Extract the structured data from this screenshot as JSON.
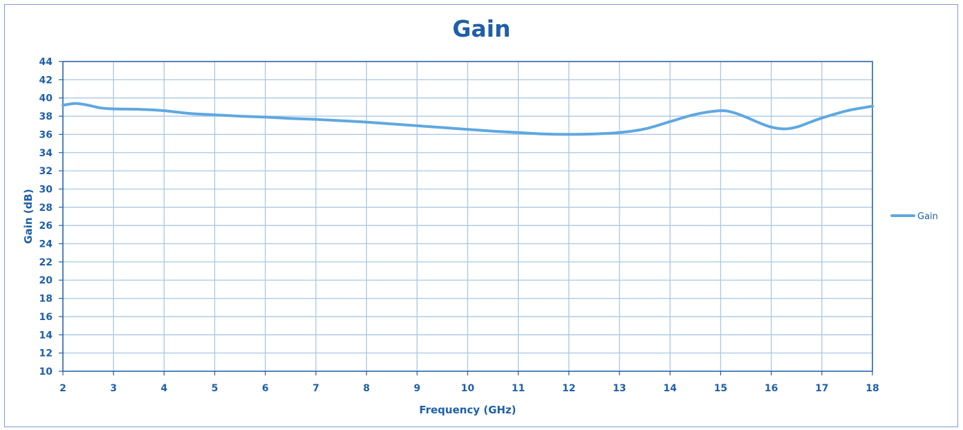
{
  "chart_data": {
    "type": "line",
    "title": "Gain",
    "xlabel": "Frequency (GHz)",
    "ylabel": "Gain (dB)",
    "xlim": [
      2,
      18
    ],
    "ylim": [
      10,
      44
    ],
    "x_ticks": [
      2,
      3,
      4,
      5,
      6,
      7,
      8,
      9,
      10,
      11,
      12,
      13,
      14,
      15,
      16,
      17,
      18
    ],
    "y_ticks": [
      10,
      12,
      14,
      16,
      18,
      20,
      22,
      24,
      26,
      28,
      30,
      32,
      34,
      36,
      38,
      40,
      42,
      44
    ],
    "grid": true,
    "legend_position": "right",
    "series_color": "#5fa8e0",
    "series": [
      {
        "name": "Gain",
        "x": [
          2,
          2.25,
          2.5,
          2.75,
          3,
          3.5,
          4,
          4.5,
          5,
          5.5,
          6,
          6.5,
          7,
          7.5,
          8,
          8.5,
          9,
          9.5,
          10,
          10.5,
          11,
          11.5,
          12,
          12.5,
          13,
          13.5,
          14,
          14.5,
          15,
          15.25,
          15.5,
          15.75,
          16,
          16.25,
          16.5,
          16.75,
          17,
          17.5,
          18
        ],
        "y": [
          39.2,
          39.4,
          39.2,
          38.9,
          38.8,
          38.75,
          38.6,
          38.3,
          38.15,
          38.0,
          37.9,
          37.75,
          37.65,
          37.5,
          37.35,
          37.15,
          36.95,
          36.75,
          36.55,
          36.35,
          36.2,
          36.05,
          36.0,
          36.05,
          36.2,
          36.6,
          37.4,
          38.2,
          38.6,
          38.4,
          37.9,
          37.3,
          36.8,
          36.6,
          36.8,
          37.3,
          37.8,
          38.6,
          39.1
        ]
      }
    ]
  }
}
